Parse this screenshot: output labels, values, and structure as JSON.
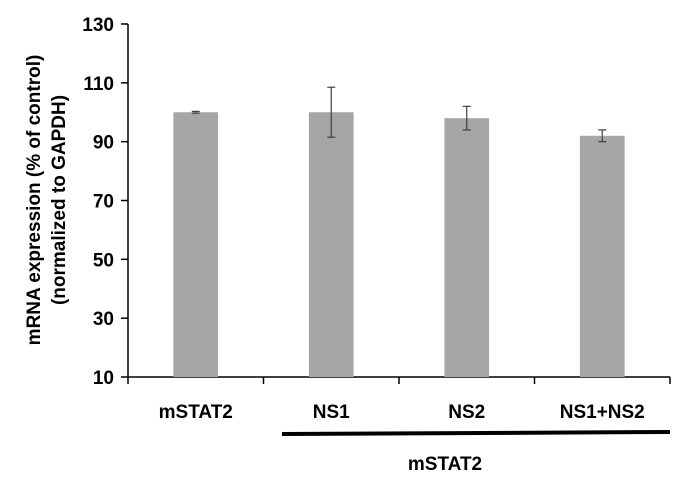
{
  "chart_data": {
    "type": "bar",
    "title": "",
    "categories": [
      "mSTAT2",
      "NS1",
      "NS2",
      "NS1+NS2"
    ],
    "values": [
      100,
      100,
      98,
      92
    ],
    "errors": [
      0.3,
      8.5,
      4,
      2
    ],
    "ylabel_line1": "mRNA expression (% of control)",
    "ylabel_line2": "(normalized to GAPDH)",
    "xlabel": "",
    "ylim": [
      10,
      130
    ],
    "yticks": [
      10,
      30,
      50,
      70,
      90,
      110,
      130
    ],
    "group_label": "mSTAT2",
    "grid": false,
    "legend": "none",
    "bar_color": "#a6a6a6",
    "error_bar_color": "#404040",
    "axis_color": "#000000"
  }
}
